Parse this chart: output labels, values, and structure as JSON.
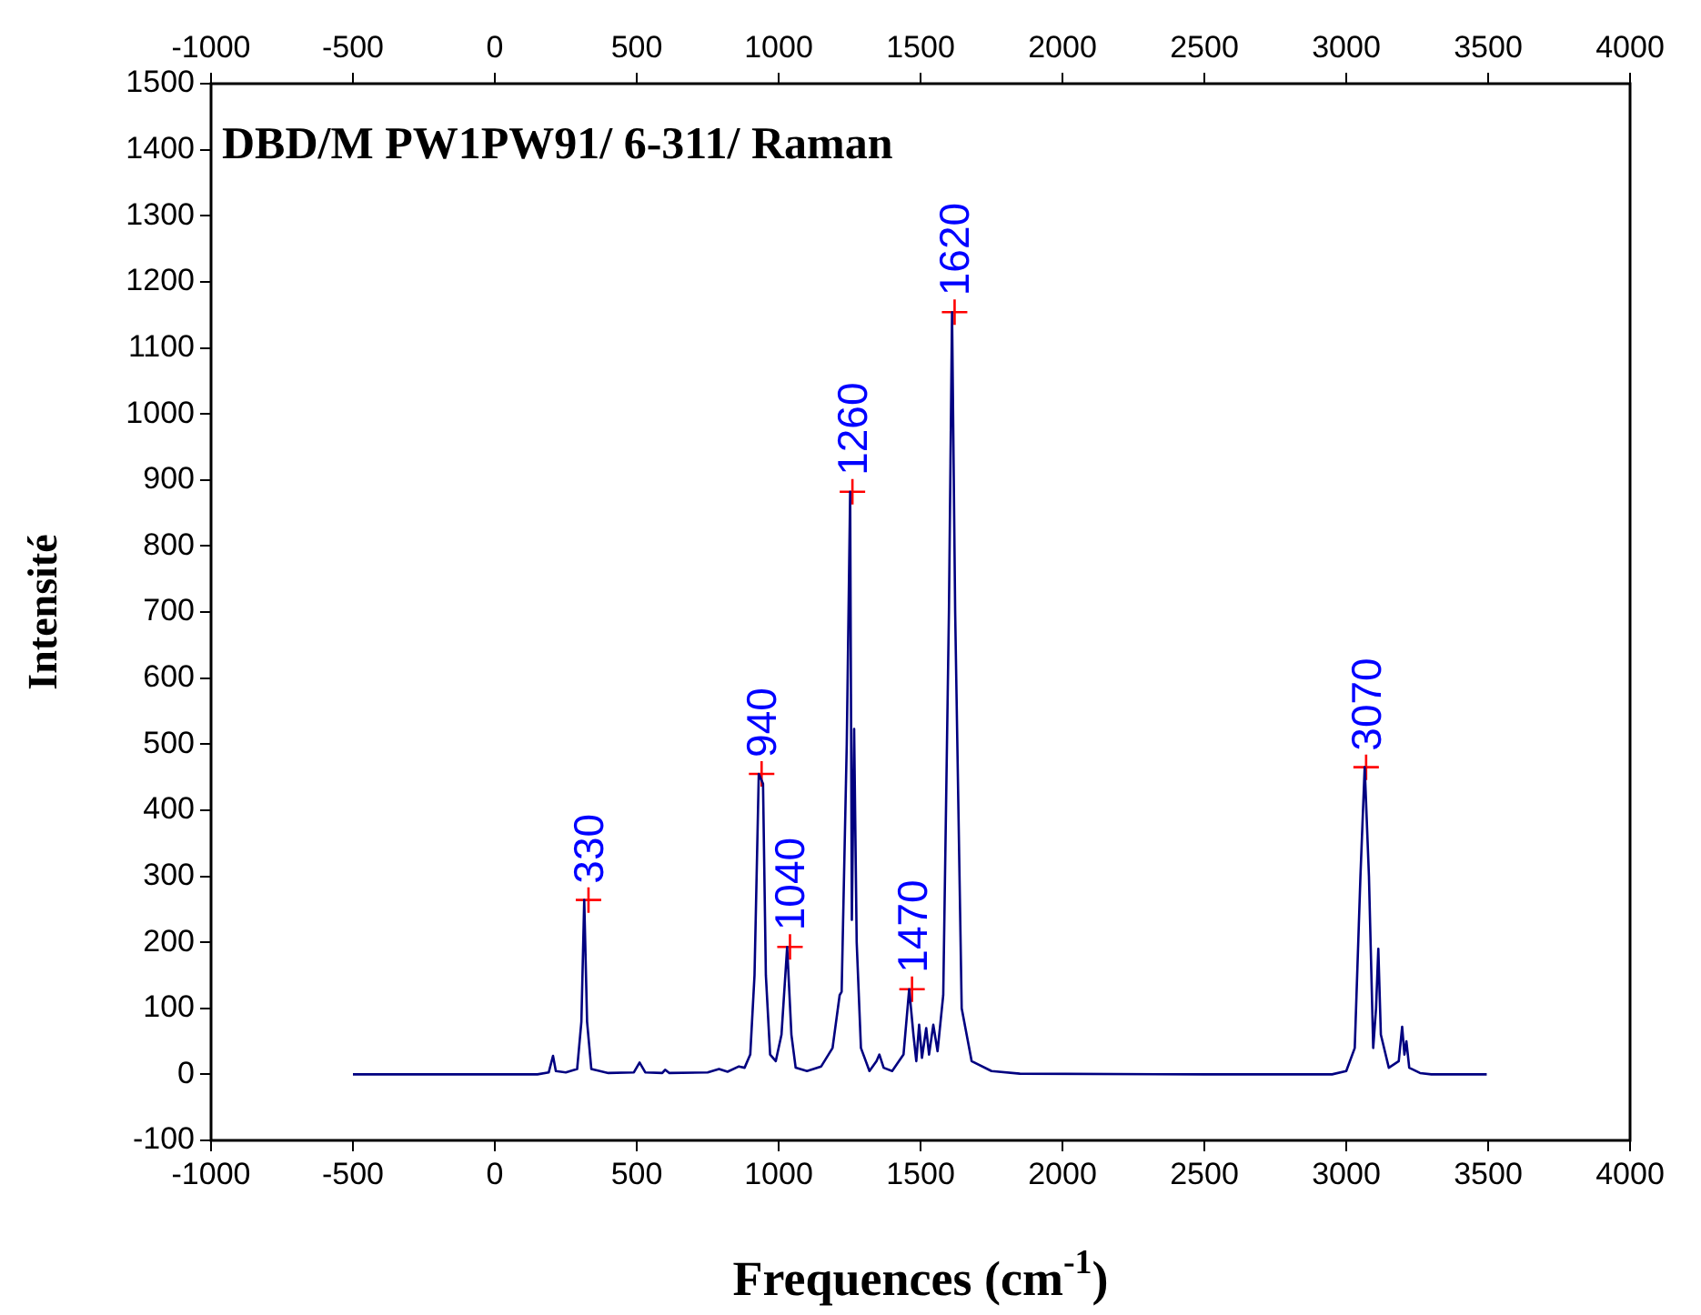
{
  "chart_data": {
    "type": "line",
    "title": "DBD/M PW1PW91/ 6-311/ Raman",
    "xlabel": "Frequences (cm$^{-1}$)",
    "ylabel": "Intensité",
    "xlim": [
      -1000,
      4000
    ],
    "xticks": [
      -1000,
      -500,
      0,
      500,
      1000,
      1500,
      2000,
      2500,
      3000,
      3500,
      4000
    ],
    "x2lim": [
      -1000,
      4000
    ],
    "x2ticks": [
      -1000,
      -500,
      0,
      500,
      1000,
      1500,
      2000,
      2500,
      3000,
      3500,
      4000
    ],
    "ylim": [
      -100,
      1500
    ],
    "yticks": [
      -100,
      0,
      100,
      200,
      300,
      400,
      500,
      600,
      700,
      800,
      900,
      1000,
      1100,
      1200,
      1300,
      1400,
      1500
    ],
    "legend": false,
    "line_style": "solid",
    "series": [
      {
        "color": "#000080",
        "marker": "none",
        "x": [
          -500,
          150,
          190,
          205,
          215,
          250,
          290,
          305,
          315,
          325,
          340,
          400,
          490,
          510,
          530,
          590,
          600,
          615,
          750,
          790,
          820,
          860,
          880,
          900,
          915,
          930,
          945,
          955,
          970,
          990,
          1010,
          1030,
          1045,
          1060,
          1100,
          1150,
          1190,
          1215,
          1222,
          1240,
          1252,
          1258,
          1266,
          1275,
          1290,
          1320,
          1345,
          1355,
          1370,
          1400,
          1440,
          1460,
          1475,
          1485,
          1495,
          1505,
          1520,
          1530,
          1545,
          1560,
          1580,
          1600,
          1611,
          1622,
          1645,
          1680,
          1750,
          1850,
          2500,
          2950,
          3000,
          3030,
          3050,
          3065,
          3080,
          3095,
          3105,
          3113,
          3122,
          3150,
          3185,
          3197,
          3205,
          3212,
          3222,
          3260,
          3300,
          3495
        ],
        "values": [
          0,
          0,
          3,
          28,
          5,
          3,
          8,
          80,
          264,
          80,
          8,
          2,
          3,
          18,
          3,
          2,
          7,
          2,
          3,
          8,
          4,
          12,
          10,
          30,
          150,
          455,
          440,
          150,
          30,
          20,
          60,
          193,
          60,
          10,
          5,
          12,
          40,
          120,
          125,
          500,
          882,
          234,
          523,
          200,
          40,
          5,
          20,
          30,
          10,
          5,
          30,
          129,
          60,
          20,
          75,
          25,
          70,
          30,
          75,
          35,
          120,
          700,
          1154,
          700,
          100,
          20,
          5,
          1,
          0,
          0,
          5,
          40,
          300,
          465,
          300,
          40,
          100,
          190,
          60,
          10,
          20,
          72,
          30,
          50,
          10,
          2,
          0,
          0
        ]
      },
      {
        "type": "scatter",
        "marker": "cross",
        "color": "#ff0000",
        "x": [
          330,
          940,
          1040,
          1260,
          1470,
          1620,
          3070
        ],
        "values": [
          264,
          455,
          193,
          882,
          129,
          1154,
          465
        ]
      }
    ],
    "annotations": [
      {
        "text": "330",
        "x": 330,
        "y": 264
      },
      {
        "text": "940",
        "x": 940,
        "y": 455
      },
      {
        "text": "1040",
        "x": 1040,
        "y": 193
      },
      {
        "text": "1260",
        "x": 1260,
        "y": 882
      },
      {
        "text": "1470",
        "x": 1470,
        "y": 129
      },
      {
        "text": "1620",
        "x": 1620,
        "y": 1154
      },
      {
        "text": "3070",
        "x": 3070,
        "y": 465
      }
    ]
  }
}
